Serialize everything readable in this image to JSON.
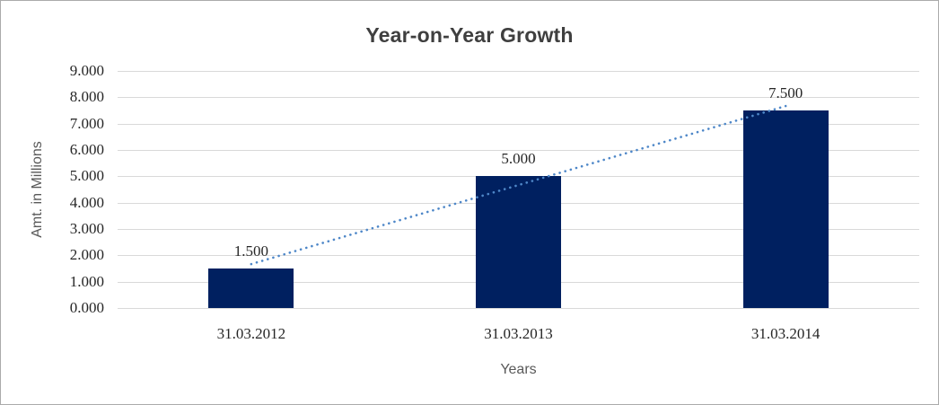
{
  "window": {
    "background_color": "#FFFFFF",
    "border_color": "#ABABAB"
  },
  "chart_data": {
    "type": "bar",
    "title": "Year-on-Year Growth",
    "categories": [
      "31.03.2012",
      "31.03.2013",
      "31.03.2014"
    ],
    "values": [
      1.5,
      5.0,
      7.5
    ],
    "value_labels": [
      "1.500",
      "5.000",
      "7.500"
    ],
    "xlabel": "Years",
    "ylabel": "Amt. in Millions",
    "ylim": [
      0,
      9
    ],
    "y_ticks": [
      "0.000",
      "1.000",
      "2.000",
      "3.000",
      "4.000",
      "5.000",
      "6.000",
      "7.000",
      "8.000",
      "9.000"
    ],
    "grid": true,
    "legend": false,
    "bar_color": "#002060",
    "gridline_color": "#D9D9D9",
    "title_color": "#3F3F3F",
    "tick_label_color": "#262626",
    "axis_title_color": "#595959",
    "trendline": {
      "type": "linear",
      "style": "dotted",
      "color": "#4E87C8",
      "endpoint_values": [
        1.667,
        7.667
      ]
    }
  }
}
